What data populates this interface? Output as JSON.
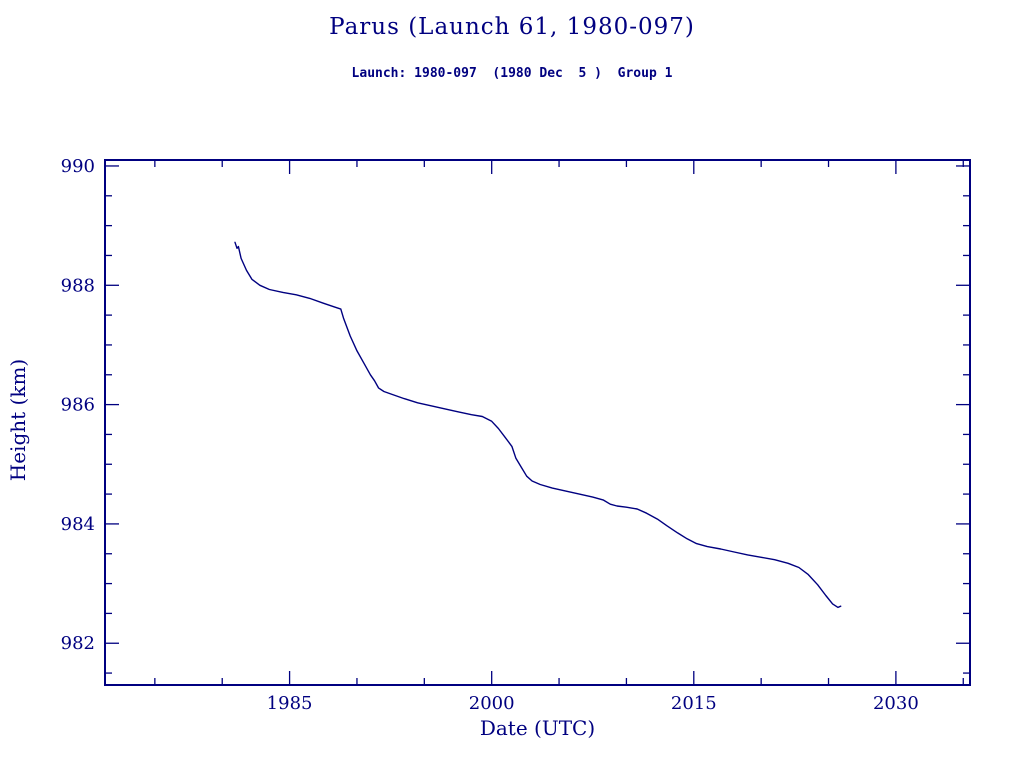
{
  "colors": {
    "ink": "#000080",
    "background": "#ffffff"
  },
  "chart_data": {
    "type": "line",
    "title": "Parus (Launch 61, 1980-097)",
    "subtitle": "Launch: 1980-097  (1980 Dec  5 )  Group 1",
    "xlabel": "Date (UTC)",
    "ylabel": "Height (km)",
    "xlim": [
      1971.3,
      2035.5
    ],
    "ylim": [
      981.3,
      990.1
    ],
    "x_major_ticks": [
      1985,
      2000,
      2015,
      2030
    ],
    "x_minor_step": 5,
    "y_major_ticks": [
      982,
      984,
      986,
      988,
      990
    ],
    "y_minor_step": 0.5,
    "grid": false,
    "legend": null,
    "series": [
      {
        "name": "Height (km)",
        "color": "#000080",
        "points": [
          [
            1980.95,
            988.72
          ],
          [
            1981.1,
            988.62
          ],
          [
            1981.2,
            988.65
          ],
          [
            1981.4,
            988.45
          ],
          [
            1981.8,
            988.25
          ],
          [
            1982.2,
            988.1
          ],
          [
            1982.8,
            988.0
          ],
          [
            1983.5,
            987.93
          ],
          [
            1984.5,
            987.88
          ],
          [
            1985.5,
            987.84
          ],
          [
            1986.5,
            987.78
          ],
          [
            1987.5,
            987.7
          ],
          [
            1988.3,
            987.64
          ],
          [
            1988.8,
            987.6
          ],
          [
            1989.0,
            987.45
          ],
          [
            1989.5,
            987.15
          ],
          [
            1990.0,
            986.9
          ],
          [
            1990.5,
            986.7
          ],
          [
            1991.0,
            986.5
          ],
          [
            1991.3,
            986.4
          ],
          [
            1991.6,
            986.28
          ],
          [
            1992.0,
            986.22
          ],
          [
            1992.5,
            986.18
          ],
          [
            1993.5,
            986.1
          ],
          [
            1994.5,
            986.03
          ],
          [
            1995.5,
            985.98
          ],
          [
            1996.5,
            985.93
          ],
          [
            1997.5,
            985.88
          ],
          [
            1998.5,
            985.83
          ],
          [
            1999.3,
            985.8
          ],
          [
            2000.0,
            985.72
          ],
          [
            2000.5,
            985.6
          ],
          [
            2001.0,
            985.45
          ],
          [
            2001.5,
            985.3
          ],
          [
            2001.8,
            985.1
          ],
          [
            2002.2,
            984.95
          ],
          [
            2002.6,
            984.8
          ],
          [
            2003.0,
            984.72
          ],
          [
            2003.6,
            984.66
          ],
          [
            2004.5,
            984.6
          ],
          [
            2005.5,
            984.55
          ],
          [
            2006.5,
            984.5
          ],
          [
            2007.5,
            984.45
          ],
          [
            2008.3,
            984.4
          ],
          [
            2008.8,
            984.33
          ],
          [
            2009.3,
            984.3
          ],
          [
            2010.0,
            984.28
          ],
          [
            2010.8,
            984.25
          ],
          [
            2011.5,
            984.18
          ],
          [
            2012.3,
            984.08
          ],
          [
            2013.0,
            983.97
          ],
          [
            2013.8,
            983.85
          ],
          [
            2014.5,
            983.75
          ],
          [
            2015.2,
            983.67
          ],
          [
            2016.0,
            983.62
          ],
          [
            2017.0,
            983.58
          ],
          [
            2018.0,
            983.53
          ],
          [
            2019.0,
            983.48
          ],
          [
            2020.0,
            983.44
          ],
          [
            2021.0,
            983.4
          ],
          [
            2022.0,
            983.34
          ],
          [
            2022.8,
            983.27
          ],
          [
            2023.5,
            983.15
          ],
          [
            2024.2,
            982.98
          ],
          [
            2024.8,
            982.8
          ],
          [
            2025.3,
            982.66
          ],
          [
            2025.7,
            982.6
          ],
          [
            2025.9,
            982.62
          ]
        ]
      }
    ]
  }
}
